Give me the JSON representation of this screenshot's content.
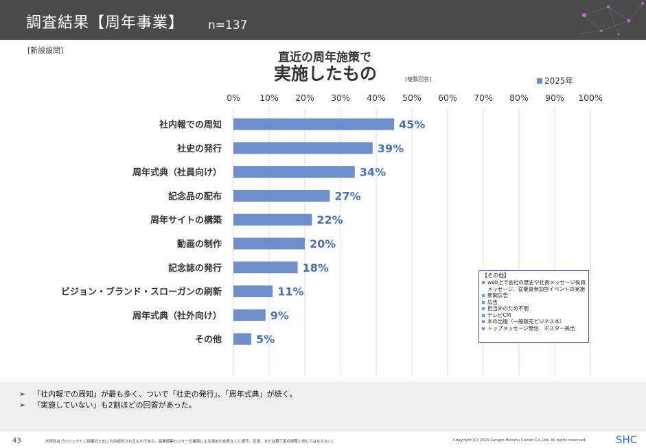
{
  "header": {
    "title": "調査結果【周年事業】",
    "n": "n=137"
  },
  "tag": "[新設設問]",
  "chart_title": {
    "line1": "直近の周年施策で",
    "line2": "実施したもの",
    "note": "[複数回答]"
  },
  "legend": {
    "label": "2025年"
  },
  "colors": {
    "bar": "#6f8fcc",
    "label": "#4a6fb5",
    "header": "#4a4a4a"
  },
  "chart_data": {
    "type": "bar",
    "orientation": "horizontal",
    "categories": [
      "社内報での周知",
      "社史の発行",
      "周年式典（社員向け）",
      "記念品の配布",
      "周年サイトの構築",
      "動画の制作",
      "記念誌の発行",
      "ビジョン・ブランド・スローガンの刷新",
      "周年式典（社外向け）",
      "その他"
    ],
    "series": [
      {
        "name": "2025年",
        "values": [
          45,
          39,
          34,
          27,
          22,
          20,
          18,
          11,
          9,
          5
        ]
      }
    ],
    "value_labels": [
      "45%",
      "39%",
      "34%",
      "27%",
      "22%",
      "20%",
      "18%",
      "11%",
      "9%",
      "5%"
    ],
    "ticks": [
      0,
      10,
      20,
      30,
      40,
      50,
      60,
      70,
      80,
      90,
      100
    ],
    "tick_labels": [
      "0%",
      "10%",
      "20%",
      "30%",
      "40%",
      "50%",
      "60%",
      "70%",
      "80%",
      "90%",
      "100%"
    ],
    "xlim": [
      0,
      100
    ],
    "grid": true,
    "legend_position": "top-right"
  },
  "other_box": {
    "title": "【その他】",
    "items": [
      "web上で会社の歴史や社長メッセージ役員メッセージ、従業員参加型イベントの実施",
      "新聞広告",
      "広告",
      "担当外のため不明",
      "テレビCM",
      "本の出版（一般販売ビジネス本）",
      "トップメッセージ発信、ポスター掲出"
    ]
  },
  "summary": {
    "lines": [
      "「社内報での周知」が最も多く、ついで「社史の発行」、「周年式典」が続く。",
      "「実施していない」も2割ほどの回答があった。"
    ],
    "arrow": "➢"
  },
  "footer": {
    "page": "43",
    "note": "本資料はプロジェクトご提案のためにのみ提供されるものであり、産業編集センターの書面による事前の合意なしに複写、引用、または第三者の閲覧に供してはならない。",
    "copyright": "Copyright (C) 2025 Sangyo Henshu Center Co.,Ltd. All rights reserved.",
    "logo": "SHC"
  }
}
